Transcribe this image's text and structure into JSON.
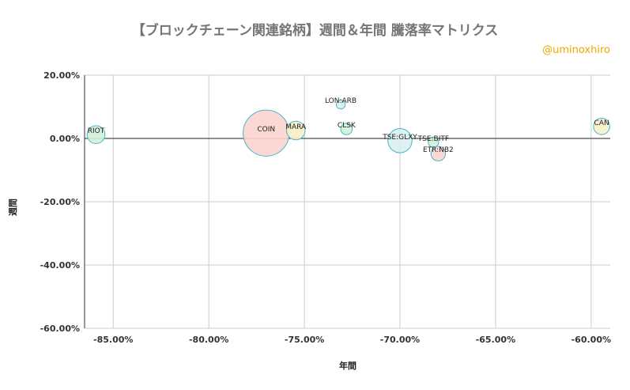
{
  "chart_data": {
    "type": "scatter",
    "title": "【ブロックチェーン関連銘柄】週間＆年間 騰落率マトリクス",
    "credit": "@uminoxhiro",
    "xlabel": "年間",
    "ylabel": "週間",
    "xlim": [
      -0.865,
      -0.59
    ],
    "ylim": [
      -0.6,
      0.2
    ],
    "x_ticks": [
      -0.85,
      -0.8,
      -0.75,
      -0.7,
      -0.65,
      -0.6
    ],
    "x_tick_labels": [
      "-85.00%",
      "-80.00%",
      "-75.00%",
      "-70.00%",
      "-65.00%",
      "-60.00%"
    ],
    "y_ticks": [
      0.2,
      0.0,
      -0.2,
      -0.4,
      -0.6
    ],
    "y_tick_labels": [
      "20.00%",
      "0.00%",
      "-20.00%",
      "-40.00%",
      "-60.00%"
    ],
    "grid": true,
    "points": [
      {
        "label": "RIOT",
        "x": -0.859,
        "y": 0.012,
        "size": 1.2,
        "fill": "#d4efd9",
        "stroke": "#49b6c9"
      },
      {
        "label": "COIN",
        "x": -0.77,
        "y": 0.017,
        "size": 8.0,
        "fill": "#fbd4ce",
        "stroke": "#49b6c9"
      },
      {
        "label": "MARA",
        "x": -0.7545,
        "y": 0.025,
        "size": 1.3,
        "fill": "#f6efc8",
        "stroke": "#49b6c9"
      },
      {
        "label": "LON:ARB",
        "x": -0.731,
        "y": 0.107,
        "size": 0.3,
        "fill": "#d9efe9",
        "stroke": "#49b6c9"
      },
      {
        "label": "CLSK",
        "x": -0.728,
        "y": 0.03,
        "size": 0.5,
        "fill": "#d4efd9",
        "stroke": "#49b6c9"
      },
      {
        "label": "TSE:GLXY",
        "x": -0.7,
        "y": -0.007,
        "size": 2.2,
        "fill": "#d9f0ef",
        "stroke": "#49b6c9"
      },
      {
        "label": "TSE:BITF",
        "x": -0.6825,
        "y": -0.012,
        "size": 0.4,
        "fill": "#d4efd9",
        "stroke": "#49b6c9"
      },
      {
        "label": "ETR:NB2",
        "x": -0.68,
        "y": -0.048,
        "size": 0.8,
        "fill": "#fbd4ce",
        "stroke": "#49b6c9"
      },
      {
        "label": "CAN",
        "x": -0.5945,
        "y": 0.038,
        "size": 1.0,
        "fill": "#f6efc8",
        "stroke": "#49b6c9"
      }
    ]
  }
}
